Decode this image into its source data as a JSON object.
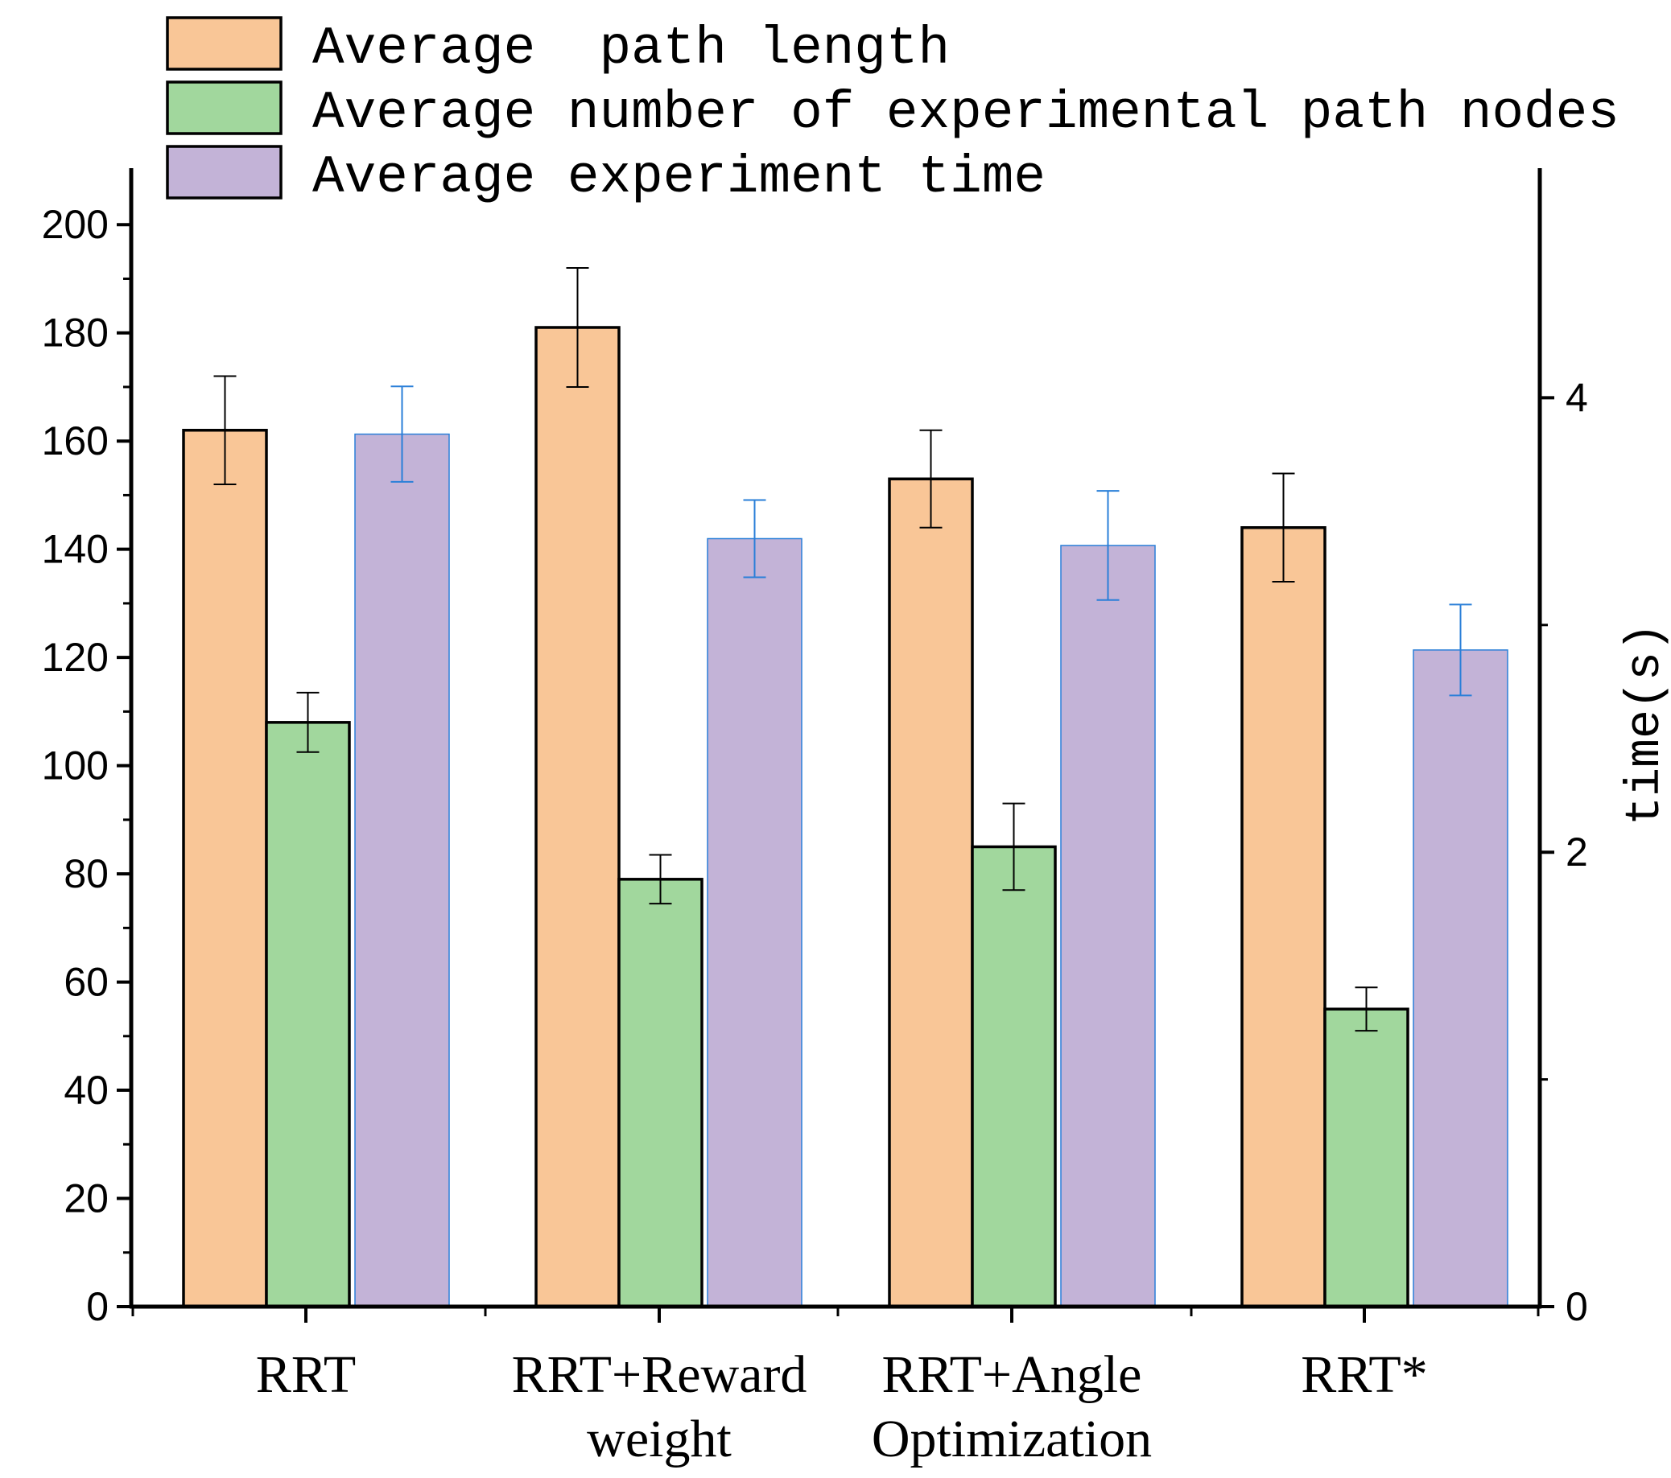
{
  "chart_data": {
    "type": "bar",
    "categories": [
      [
        "RRT"
      ],
      [
        "RRT+Reward",
        "weight"
      ],
      [
        "RRT+Angle",
        "Optimization"
      ],
      [
        "RRT*"
      ]
    ],
    "series": [
      {
        "name": "Average  path length",
        "axis": "left",
        "color": "#F9C697",
        "edge": "#000000",
        "values": [
          162,
          181,
          153,
          144
        ],
        "errors": [
          10,
          11,
          9,
          10
        ]
      },
      {
        "name": "Average number of experimental path nodes",
        "axis": "left",
        "color": "#A1D79D",
        "edge": "#000000",
        "values": [
          108,
          79,
          85,
          55
        ],
        "errors": [
          5.5,
          4.5,
          8,
          4
        ]
      },
      {
        "name": "Average experiment time",
        "axis": "right",
        "color": "#C3B3D7",
        "edge": "#2A7FD8",
        "errorColor": "#2A7FD8",
        "values": [
          3.84,
          3.38,
          3.35,
          2.89
        ],
        "errors": [
          0.21,
          0.17,
          0.24,
          0.2
        ]
      }
    ],
    "left_axis": {
      "label": "",
      "ylim": [
        0,
        210
      ],
      "ticks": [
        0,
        20,
        40,
        60,
        80,
        100,
        120,
        140,
        160,
        180,
        200
      ]
    },
    "right_axis": {
      "label": "time(s)",
      "ylim": [
        0,
        5
      ],
      "ticks": [
        0,
        2,
        4
      ]
    },
    "legend": "top-left"
  }
}
